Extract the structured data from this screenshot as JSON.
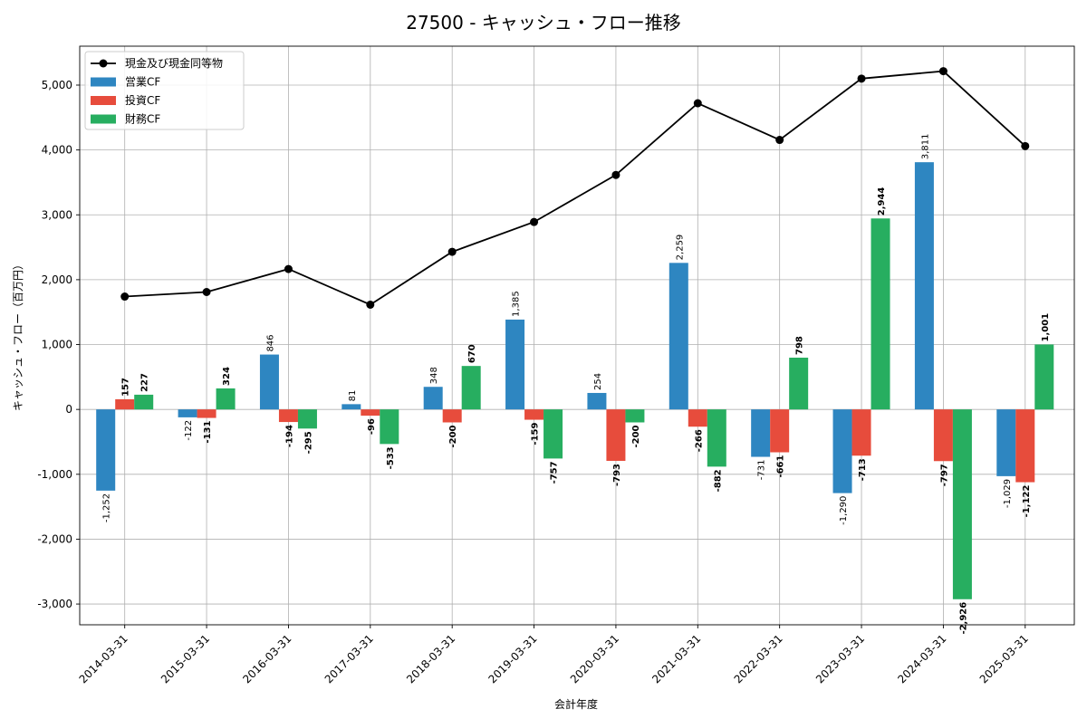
{
  "chart_data": {
    "type": "bar",
    "title": "27500 - キャッシュ・フロー推移",
    "xlabel": "会計年度",
    "ylabel": "キャッシュ・フロー（百万円）",
    "categories": [
      "2014-03-31",
      "2015-03-31",
      "2016-03-31",
      "2017-03-31",
      "2018-03-31",
      "2019-03-31",
      "2020-03-31",
      "2021-03-31",
      "2022-03-31",
      "2023-03-31",
      "2024-03-31",
      "2025-03-31"
    ],
    "ylim": [
      -3320,
      5600
    ],
    "yticks": [
      -3000,
      -2000,
      -1000,
      0,
      1000,
      2000,
      3000,
      4000,
      5000
    ],
    "ytick_labels": [
      "-3,000",
      "-2,000",
      "-1,000",
      "0",
      "1,000",
      "2,000",
      "3,000",
      "4,000",
      "5,000"
    ],
    "grid": true,
    "legend_position": "upper-left",
    "series": [
      {
        "name": "営業CF",
        "kind": "bar",
        "color": "#2e86c1",
        "values": [
          -1252,
          -122,
          846,
          81,
          348,
          1385,
          254,
          2259,
          -731,
          -1290,
          3811,
          -1029
        ],
        "labels": [
          "-1,252",
          "-122",
          "846",
          "81",
          "348",
          "1,385",
          "254",
          "2,259",
          "-731",
          "-1,290",
          "3,811",
          "-1,029"
        ]
      },
      {
        "name": "投資CF",
        "kind": "bar",
        "color": "#e74c3c",
        "values": [
          157,
          -131,
          -194,
          -96,
          -200,
          -159,
          -793,
          -266,
          -661,
          -713,
          -797,
          -1122
        ],
        "labels": [
          "157",
          "-131",
          "-194",
          "-96",
          "-200",
          "-159",
          "-793",
          "-266",
          "-661",
          "-713",
          "-797",
          "-1,122"
        ]
      },
      {
        "name": "財務CF",
        "kind": "bar",
        "color": "#27ae60",
        "values": [
          227,
          324,
          -295,
          -533,
          670,
          -757,
          -200,
          -882,
          798,
          2944,
          -2926,
          1001
        ],
        "labels": [
          "227",
          "324",
          "-295",
          "-533",
          "670",
          "-757",
          "-200",
          "-882",
          "798",
          "2,944",
          "-2,926",
          "1,001"
        ]
      },
      {
        "name": "現金及び現金同等物",
        "kind": "line",
        "color": "#000000",
        "values": [
          1740,
          1810,
          2165,
          1615,
          2430,
          2890,
          3615,
          4720,
          4155,
          5100,
          5215,
          4060
        ]
      }
    ]
  }
}
